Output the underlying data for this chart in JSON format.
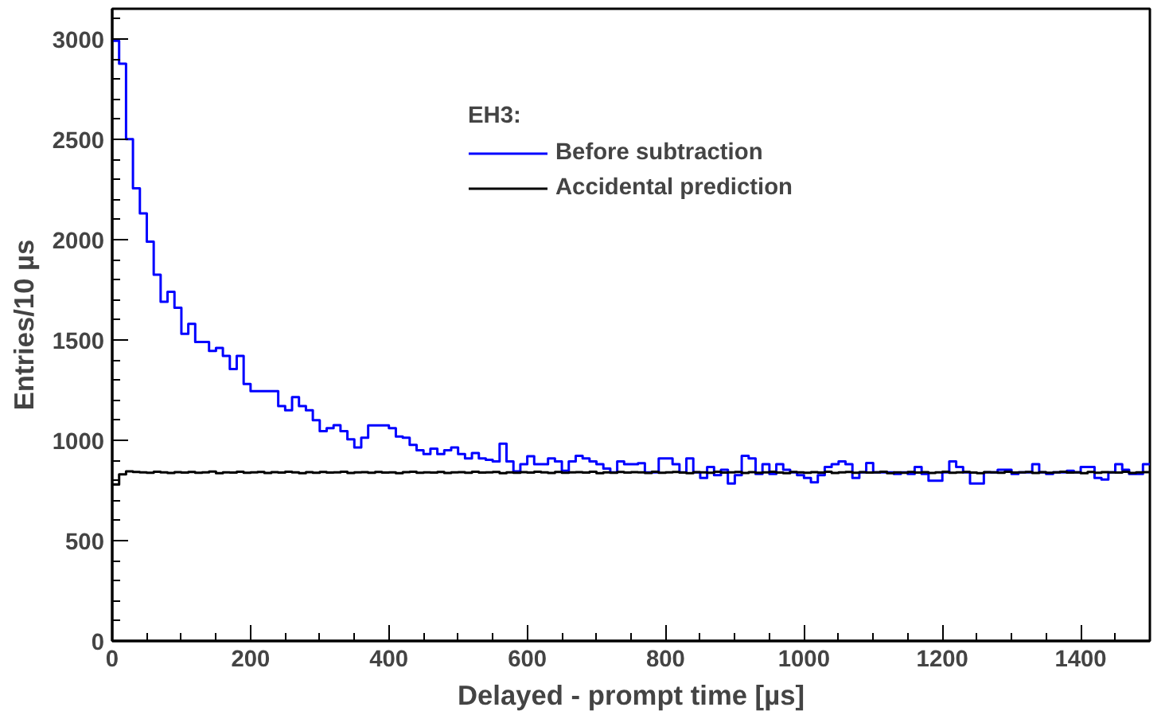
{
  "chart_data": {
    "type": "histogram",
    "xlabel": "Delayed - prompt time [µs]",
    "ylabel": "Entries/10 µs",
    "legend_title": "EH3:",
    "bins": [
      0,
      10,
      20,
      30,
      40,
      50,
      60,
      70,
      80,
      90,
      100,
      110,
      120,
      130,
      140,
      150,
      160,
      170,
      180,
      190,
      200,
      210,
      220,
      230,
      240,
      250,
      260,
      270,
      280,
      290,
      300,
      310,
      320,
      330,
      340,
      350,
      360,
      370,
      380,
      390,
      400,
      410,
      420,
      430,
      440,
      450,
      460,
      470,
      480,
      490,
      500,
      510,
      520,
      530,
      540,
      550,
      560,
      570,
      580,
      590,
      600,
      610,
      620,
      630,
      640,
      650,
      660,
      670,
      680,
      690,
      700,
      710,
      720,
      730,
      740,
      750,
      760,
      770,
      780,
      790,
      800,
      810,
      820,
      830,
      840,
      850,
      860,
      870,
      880,
      890,
      900,
      910,
      920,
      930,
      940,
      950,
      960,
      970,
      980,
      990,
      1000,
      1010,
      1020,
      1030,
      1040,
      1050,
      1060,
      1070,
      1080,
      1090,
      1100,
      1110,
      1120,
      1130,
      1140,
      1150,
      1160,
      1170,
      1180,
      1190,
      1200,
      1210,
      1220,
      1230,
      1240,
      1250,
      1260,
      1270,
      1280,
      1290,
      1300,
      1310,
      1320,
      1330,
      1340,
      1350,
      1360,
      1370,
      1380,
      1390,
      1400,
      1410,
      1420,
      1430,
      1440,
      1450,
      1460,
      1470,
      1480,
      1490,
      1500
    ],
    "series": [
      {
        "name": "Before subtraction",
        "color": "#0000ff",
        "values": [
          2990,
          2876,
          2500,
          2255,
          2130,
          1990,
          1825,
          1690,
          1740,
          1660,
          1530,
          1580,
          1490,
          1490,
          1445,
          1460,
          1420,
          1355,
          1420,
          1280,
          1245,
          1245,
          1245,
          1245,
          1170,
          1150,
          1215,
          1170,
          1150,
          1100,
          1045,
          1060,
          1075,
          1045,
          1005,
          964,
          1013,
          1074,
          1074,
          1074,
          1060,
          1019,
          1013,
          977,
          950,
          931,
          958,
          931,
          950,
          964,
          931,
          909,
          936,
          909,
          903,
          895,
          983,
          895,
          845,
          881,
          920,
          881,
          881,
          909,
          895,
          848,
          895,
          922,
          909,
          895,
          881,
          859,
          840,
          895,
          881,
          881,
          886,
          840,
          840,
          909,
          909,
          881,
          840,
          909,
          840,
          812,
          867,
          826,
          853,
          785,
          826,
          922,
          909,
          832,
          881,
          832,
          881,
          853,
          840,
          826,
          812,
          790,
          826,
          867,
          881,
          895,
          881,
          812,
          840,
          887,
          840,
          840,
          840,
          832,
          840,
          832,
          867,
          832,
          798,
          798,
          840,
          895,
          867,
          840,
          785,
          785,
          840,
          840,
          853,
          853,
          832,
          840,
          840,
          881,
          840,
          832,
          840,
          840,
          848,
          840,
          867,
          867,
          812,
          804,
          840,
          881,
          853,
          832,
          832,
          881
        ]
      },
      {
        "name": "Accidental prediction",
        "color": "#000000",
        "values": [
          780,
          830,
          845,
          842,
          840,
          838,
          843,
          840,
          837,
          841,
          839,
          842,
          838,
          840,
          844,
          836,
          840,
          839,
          843,
          838,
          840,
          842,
          837,
          841,
          839,
          843,
          840,
          836,
          841,
          838,
          842,
          839,
          840,
          843,
          837,
          840,
          841,
          838,
          842,
          839,
          840,
          836,
          841,
          843,
          838,
          840,
          839,
          842,
          837,
          840,
          841,
          838,
          843,
          839,
          840,
          842,
          836,
          840,
          838,
          841,
          839,
          843,
          840,
          837,
          842,
          838,
          840,
          841,
          839,
          843,
          836,
          840,
          838,
          842,
          839,
          841,
          840,
          837,
          843,
          838,
          840,
          842,
          839,
          836,
          841,
          840,
          838,
          843,
          839,
          840,
          842,
          837,
          841,
          838,
          840,
          843,
          839,
          836,
          842,
          840,
          838,
          841,
          839,
          843,
          837,
          840,
          842,
          838,
          841,
          839,
          840,
          843,
          836,
          840,
          838,
          842,
          839,
          841,
          837,
          840,
          843,
          838,
          840,
          842,
          839,
          836,
          841,
          840,
          838,
          843,
          839,
          840,
          842,
          837,
          841,
          838,
          840,
          843,
          839,
          840,
          836,
          842,
          838,
          841,
          840,
          839,
          843,
          837,
          840,
          841
        ]
      }
    ],
    "xlim": [
      0,
      1500
    ],
    "xticks": [
      0,
      200,
      400,
      600,
      800,
      1000,
      1200,
      1400
    ],
    "ylim": [
      0,
      3150
    ],
    "yticks": [
      0,
      500,
      1000,
      1500,
      2000,
      2500,
      3000
    ],
    "grid": false,
    "legend": "top"
  }
}
